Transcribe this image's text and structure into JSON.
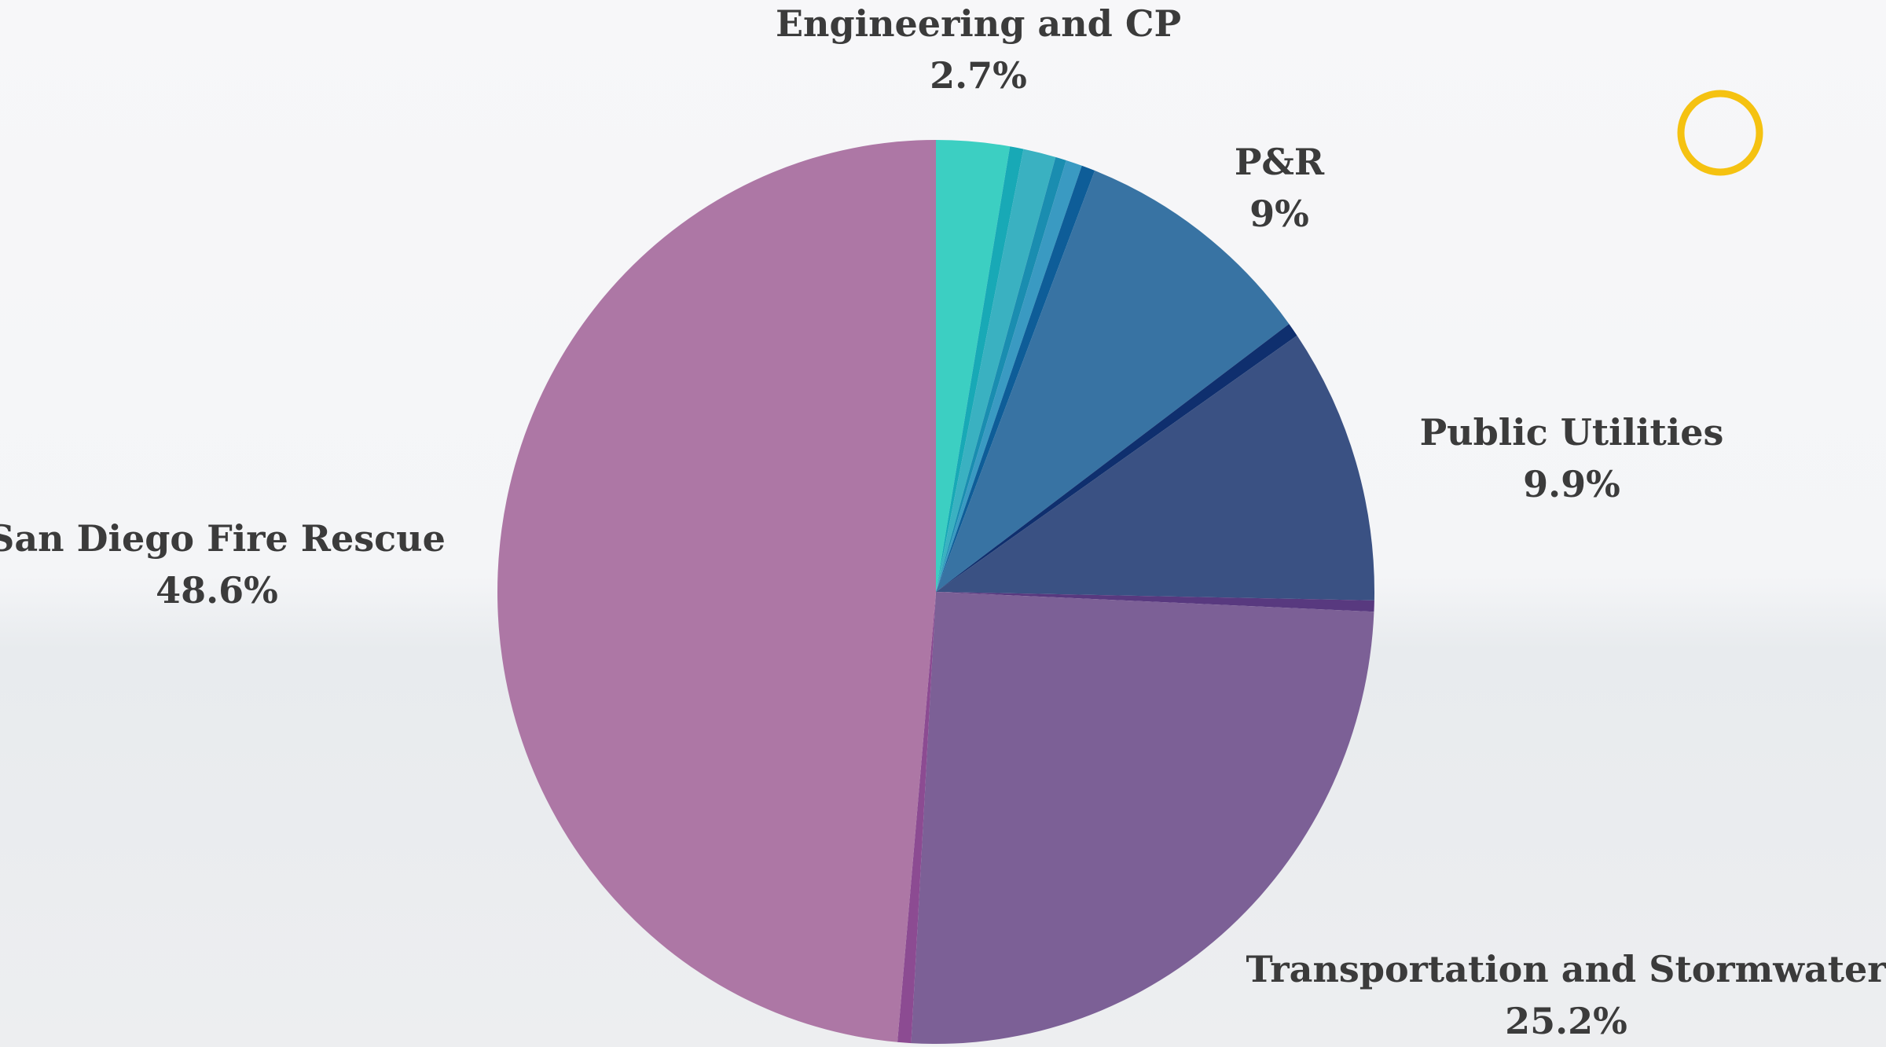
{
  "chart_data": {
    "type": "pie",
    "categories": [
      "Engineering and CP",
      null,
      null,
      null,
      null,
      null,
      "P&R",
      null,
      "Public Utilities",
      null,
      "Transportation and Stormwater",
      null,
      "San Diego Fire Rescue"
    ],
    "values": [
      2.7,
      0.5,
      1.2,
      0.4,
      0.6,
      0.5,
      9,
      0.5,
      9.9,
      0.4,
      25.2,
      0.5,
      48.6
    ],
    "value_labels": [
      "2.7%",
      null,
      null,
      null,
      null,
      null,
      "9%",
      null,
      "9.9%",
      null,
      "25.2%",
      null,
      "48.6%"
    ],
    "colors": [
      "#3ccfc2",
      "#18a9b6",
      "#3ab1c1",
      "#1a8db0",
      "#3a9ac2",
      "#0e5d98",
      "#3873a3",
      "#0f2f6e",
      "#3a5183",
      "#58397f",
      "#7c6096",
      "#8c4b92",
      "#ad77a5"
    ]
  }
}
